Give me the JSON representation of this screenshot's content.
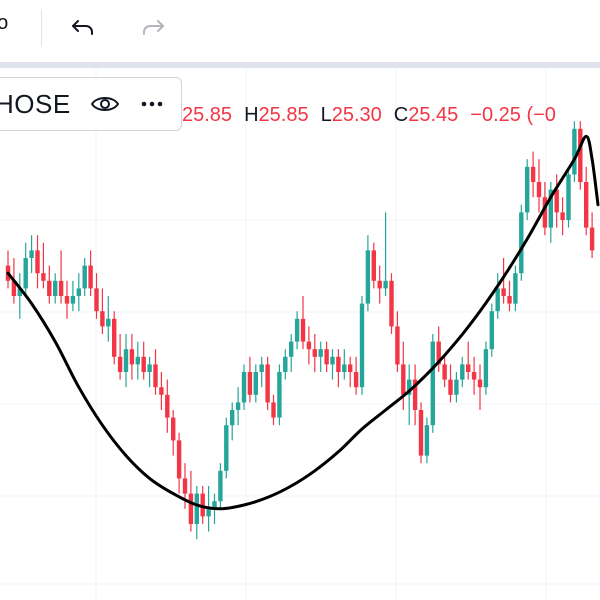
{
  "toolbar": {
    "partial_text": "ho",
    "undo_icon": "undo-icon",
    "redo_icon": "redo-icon"
  },
  "legend": {
    "symbol": "HOSE",
    "eye_icon": "eye-icon",
    "more_icon": "more-horizontal-icon",
    "open_value": "25.85",
    "high_label": "H",
    "high_value": "25.85",
    "low_label": "L",
    "low_value": "25.30",
    "close_label": "C",
    "close_value": "25.45",
    "change": "−0.25 (−0"
  },
  "colors": {
    "up": "#26a69a",
    "down": "#f23645",
    "curve": "#000000",
    "grid": "#f0f3fa"
  },
  "chart_data": {
    "type": "candlestick",
    "title": "",
    "xlabel": "",
    "ylabel": "",
    "grid": true,
    "ylim": [
      22.5,
      29.5
    ],
    "candles": [
      {
        "o": 26.9,
        "h": 27.1,
        "l": 26.6,
        "c": 26.7
      },
      {
        "o": 26.7,
        "h": 27.0,
        "l": 26.4,
        "c": 26.5
      },
      {
        "o": 26.5,
        "h": 26.8,
        "l": 26.2,
        "c": 26.6
      },
      {
        "o": 26.6,
        "h": 27.2,
        "l": 26.5,
        "c": 27.0
      },
      {
        "o": 27.0,
        "h": 27.3,
        "l": 26.8,
        "c": 27.1
      },
      {
        "o": 27.1,
        "h": 27.3,
        "l": 26.6,
        "c": 26.8
      },
      {
        "o": 26.8,
        "h": 27.2,
        "l": 26.6,
        "c": 26.7
      },
      {
        "o": 26.7,
        "h": 26.9,
        "l": 26.4,
        "c": 26.5
      },
      {
        "o": 26.5,
        "h": 26.8,
        "l": 26.4,
        "c": 26.7
      },
      {
        "o": 26.7,
        "h": 27.1,
        "l": 26.4,
        "c": 26.5
      },
      {
        "o": 26.5,
        "h": 26.7,
        "l": 26.2,
        "c": 26.4
      },
      {
        "o": 26.4,
        "h": 26.7,
        "l": 26.3,
        "c": 26.5
      },
      {
        "o": 26.5,
        "h": 26.8,
        "l": 26.3,
        "c": 26.6
      },
      {
        "o": 26.6,
        "h": 27.0,
        "l": 26.5,
        "c": 26.9
      },
      {
        "o": 26.9,
        "h": 27.1,
        "l": 26.5,
        "c": 26.6
      },
      {
        "o": 26.6,
        "h": 26.8,
        "l": 26.2,
        "c": 26.3
      },
      {
        "o": 26.3,
        "h": 26.6,
        "l": 26.0,
        "c": 26.1
      },
      {
        "o": 26.1,
        "h": 26.5,
        "l": 25.9,
        "c": 26.2
      },
      {
        "o": 26.2,
        "h": 26.3,
        "l": 25.6,
        "c": 25.7
      },
      {
        "o": 25.7,
        "h": 26.0,
        "l": 25.4,
        "c": 25.5
      },
      {
        "o": 25.5,
        "h": 26.0,
        "l": 25.3,
        "c": 25.8
      },
      {
        "o": 25.8,
        "h": 26.0,
        "l": 25.4,
        "c": 25.6
      },
      {
        "o": 25.6,
        "h": 25.9,
        "l": 25.4,
        "c": 25.7
      },
      {
        "o": 25.7,
        "h": 25.9,
        "l": 25.4,
        "c": 25.5
      },
      {
        "o": 25.5,
        "h": 25.7,
        "l": 25.3,
        "c": 25.6
      },
      {
        "o": 25.6,
        "h": 25.8,
        "l": 25.2,
        "c": 25.3
      },
      {
        "o": 25.3,
        "h": 25.5,
        "l": 25.0,
        "c": 25.2
      },
      {
        "o": 25.2,
        "h": 25.4,
        "l": 24.7,
        "c": 24.9
      },
      {
        "o": 24.9,
        "h": 25.0,
        "l": 24.4,
        "c": 24.6
      },
      {
        "o": 24.6,
        "h": 24.7,
        "l": 23.9,
        "c": 24.1
      },
      {
        "o": 24.1,
        "h": 24.3,
        "l": 23.7,
        "c": 23.9
      },
      {
        "o": 23.9,
        "h": 24.2,
        "l": 23.4,
        "c": 23.5
      },
      {
        "o": 23.5,
        "h": 24.0,
        "l": 23.3,
        "c": 23.9
      },
      {
        "o": 23.9,
        "h": 24.0,
        "l": 23.5,
        "c": 23.6
      },
      {
        "o": 23.6,
        "h": 24.0,
        "l": 23.4,
        "c": 23.7
      },
      {
        "o": 23.7,
        "h": 23.9,
        "l": 23.5,
        "c": 23.8
      },
      {
        "o": 23.8,
        "h": 24.3,
        "l": 23.7,
        "c": 24.2
      },
      {
        "o": 24.2,
        "h": 24.9,
        "l": 24.1,
        "c": 24.8
      },
      {
        "o": 24.8,
        "h": 25.1,
        "l": 24.6,
        "c": 25.0
      },
      {
        "o": 25.0,
        "h": 25.3,
        "l": 24.8,
        "c": 25.1
      },
      {
        "o": 25.1,
        "h": 25.6,
        "l": 25.0,
        "c": 25.5
      },
      {
        "o": 25.5,
        "h": 25.7,
        "l": 25.1,
        "c": 25.2
      },
      {
        "o": 25.2,
        "h": 25.6,
        "l": 25.1,
        "c": 25.5
      },
      {
        "o": 25.5,
        "h": 25.7,
        "l": 25.3,
        "c": 25.6
      },
      {
        "o": 25.6,
        "h": 25.7,
        "l": 25.0,
        "c": 25.1
      },
      {
        "o": 25.1,
        "h": 25.2,
        "l": 24.8,
        "c": 24.9
      },
      {
        "o": 24.9,
        "h": 25.6,
        "l": 24.8,
        "c": 25.5
      },
      {
        "o": 25.5,
        "h": 25.8,
        "l": 25.4,
        "c": 25.7
      },
      {
        "o": 25.7,
        "h": 26.0,
        "l": 25.5,
        "c": 25.9
      },
      {
        "o": 25.9,
        "h": 26.3,
        "l": 25.8,
        "c": 26.2
      },
      {
        "o": 26.2,
        "h": 26.5,
        "l": 25.8,
        "c": 25.9
      },
      {
        "o": 25.9,
        "h": 26.1,
        "l": 25.6,
        "c": 25.8
      },
      {
        "o": 25.8,
        "h": 26.0,
        "l": 25.5,
        "c": 25.7
      },
      {
        "o": 25.7,
        "h": 25.9,
        "l": 25.5,
        "c": 25.8
      },
      {
        "o": 25.8,
        "h": 25.9,
        "l": 25.5,
        "c": 25.6
      },
      {
        "o": 25.6,
        "h": 25.8,
        "l": 25.4,
        "c": 25.7
      },
      {
        "o": 25.7,
        "h": 25.8,
        "l": 25.3,
        "c": 25.5
      },
      {
        "o": 25.5,
        "h": 25.8,
        "l": 25.4,
        "c": 25.6
      },
      {
        "o": 25.6,
        "h": 25.7,
        "l": 25.3,
        "c": 25.5
      },
      {
        "o": 25.5,
        "h": 25.7,
        "l": 25.2,
        "c": 25.3
      },
      {
        "o": 25.3,
        "h": 26.5,
        "l": 25.2,
        "c": 26.4
      },
      {
        "o": 26.4,
        "h": 27.3,
        "l": 26.3,
        "c": 27.1
      },
      {
        "o": 27.1,
        "h": 27.2,
        "l": 26.6,
        "c": 26.7
      },
      {
        "o": 26.7,
        "h": 26.9,
        "l": 26.4,
        "c": 26.6
      },
      {
        "o": 26.6,
        "h": 27.6,
        "l": 26.5,
        "c": 26.7
      },
      {
        "o": 26.7,
        "h": 26.8,
        "l": 26.0,
        "c": 26.1
      },
      {
        "o": 26.1,
        "h": 26.3,
        "l": 25.5,
        "c": 25.6
      },
      {
        "o": 25.6,
        "h": 25.9,
        "l": 25.0,
        "c": 25.2
      },
      {
        "o": 25.2,
        "h": 25.6,
        "l": 24.8,
        "c": 25.4
      },
      {
        "o": 25.4,
        "h": 25.6,
        "l": 24.8,
        "c": 25.0
      },
      {
        "o": 25.0,
        "h": 25.1,
        "l": 24.3,
        "c": 24.4
      },
      {
        "o": 24.4,
        "h": 24.9,
        "l": 24.3,
        "c": 24.8
      },
      {
        "o": 24.8,
        "h": 26.0,
        "l": 24.7,
        "c": 25.9
      },
      {
        "o": 25.9,
        "h": 26.1,
        "l": 25.5,
        "c": 25.6
      },
      {
        "o": 25.6,
        "h": 25.7,
        "l": 25.3,
        "c": 25.4
      },
      {
        "o": 25.4,
        "h": 25.6,
        "l": 25.1,
        "c": 25.2
      },
      {
        "o": 25.2,
        "h": 25.5,
        "l": 25.1,
        "c": 25.4
      },
      {
        "o": 25.4,
        "h": 25.7,
        "l": 25.3,
        "c": 25.6
      },
      {
        "o": 25.6,
        "h": 25.9,
        "l": 25.4,
        "c": 25.5
      },
      {
        "o": 25.5,
        "h": 25.7,
        "l": 25.2,
        "c": 25.4
      },
      {
        "o": 25.4,
        "h": 25.6,
        "l": 25.0,
        "c": 25.3
      },
      {
        "o": 25.3,
        "h": 25.9,
        "l": 25.2,
        "c": 25.8
      },
      {
        "o": 25.8,
        "h": 26.4,
        "l": 25.7,
        "c": 26.3
      },
      {
        "o": 26.3,
        "h": 26.8,
        "l": 26.2,
        "c": 26.6
      },
      {
        "o": 26.6,
        "h": 27.0,
        "l": 26.4,
        "c": 26.5
      },
      {
        "o": 26.5,
        "h": 26.7,
        "l": 26.3,
        "c": 26.4
      },
      {
        "o": 26.4,
        "h": 26.9,
        "l": 26.3,
        "c": 26.8
      },
      {
        "o": 26.8,
        "h": 27.7,
        "l": 26.7,
        "c": 27.6
      },
      {
        "o": 27.6,
        "h": 28.3,
        "l": 27.5,
        "c": 28.2
      },
      {
        "o": 28.2,
        "h": 28.4,
        "l": 27.8,
        "c": 28.0
      },
      {
        "o": 28.0,
        "h": 28.3,
        "l": 27.6,
        "c": 27.8
      },
      {
        "o": 27.8,
        "h": 28.0,
        "l": 27.3,
        "c": 27.4
      },
      {
        "o": 27.4,
        "h": 28.0,
        "l": 27.2,
        "c": 27.9
      },
      {
        "o": 27.9,
        "h": 28.1,
        "l": 27.4,
        "c": 27.6
      },
      {
        "o": 27.6,
        "h": 27.8,
        "l": 27.3,
        "c": 27.5
      },
      {
        "o": 27.5,
        "h": 28.2,
        "l": 27.4,
        "c": 28.1
      },
      {
        "o": 28.1,
        "h": 28.8,
        "l": 28.0,
        "c": 28.7
      },
      {
        "o": 28.7,
        "h": 28.8,
        "l": 27.9,
        "c": 28.0
      },
      {
        "o": 28.0,
        "h": 28.2,
        "l": 27.3,
        "c": 27.4
      },
      {
        "o": 27.4,
        "h": 27.6,
        "l": 27.0,
        "c": 27.1
      }
    ],
    "trend_curve": [
      [
        0,
        26.8
      ],
      [
        4,
        26.4
      ],
      [
        8,
        25.9
      ],
      [
        12,
        25.3
      ],
      [
        16,
        24.8
      ],
      [
        20,
        24.4
      ],
      [
        24,
        24.1
      ],
      [
        28,
        23.9
      ],
      [
        32,
        23.75
      ],
      [
        36,
        23.7
      ],
      [
        40,
        23.75
      ],
      [
        44,
        23.85
      ],
      [
        48,
        24.0
      ],
      [
        52,
        24.2
      ],
      [
        56,
        24.45
      ],
      [
        60,
        24.75
      ],
      [
        64,
        25.0
      ],
      [
        68,
        25.25
      ],
      [
        72,
        25.55
      ],
      [
        76,
        25.9
      ],
      [
        80,
        26.3
      ],
      [
        84,
        26.75
      ],
      [
        88,
        27.25
      ],
      [
        92,
        27.8
      ],
      [
        96,
        28.3
      ],
      [
        98,
        28.6
      ],
      [
        99,
        28.3
      ],
      [
        100,
        27.7
      ]
    ]
  }
}
